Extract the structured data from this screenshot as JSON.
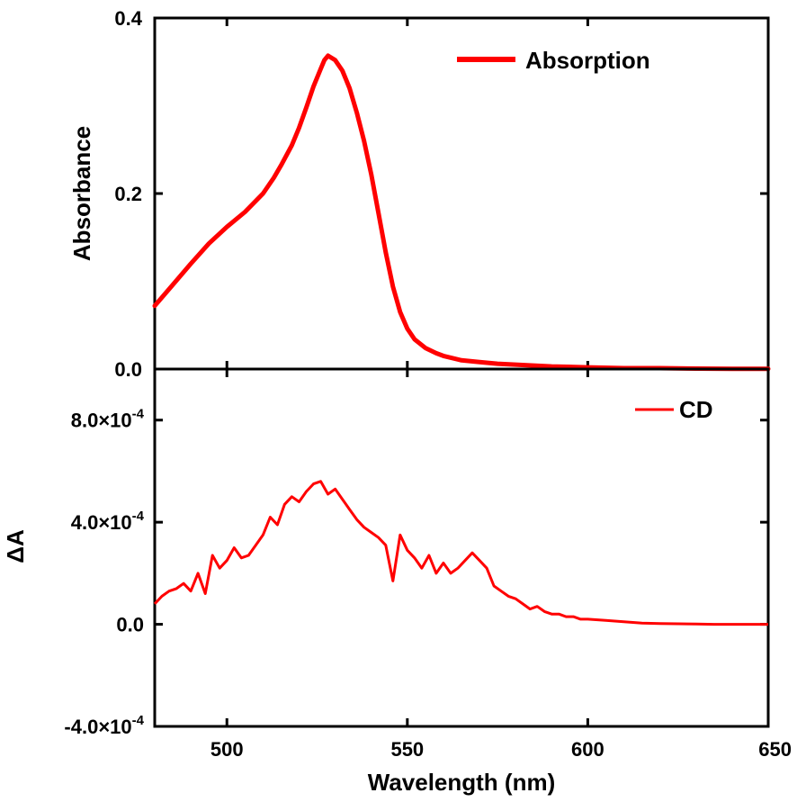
{
  "chart_data": [
    {
      "type": "line",
      "title": "",
      "xlabel": "",
      "ylabel": "Absorbance",
      "xlim": [
        480,
        650
      ],
      "ylim": [
        0,
        0.4
      ],
      "yticks": [
        0.0,
        0.2,
        0.4
      ],
      "ytick_labels": [
        "0.0",
        "0.2",
        "0.4"
      ],
      "legend_location": "top-right",
      "series": [
        {
          "name": "Absorption",
          "color": "#ff0000",
          "x": [
            480,
            485,
            490,
            495,
            500,
            505,
            510,
            513,
            515,
            518,
            520,
            522,
            524,
            526,
            527,
            528,
            530,
            532,
            534,
            536,
            538,
            540,
            542,
            544,
            546,
            548,
            550,
            552,
            555,
            558,
            560,
            565,
            570,
            575,
            580,
            590,
            600,
            610,
            620,
            630,
            640,
            650
          ],
          "y": [
            0.072,
            0.096,
            0.12,
            0.143,
            0.162,
            0.179,
            0.2,
            0.218,
            0.232,
            0.255,
            0.275,
            0.298,
            0.322,
            0.342,
            0.352,
            0.357,
            0.352,
            0.34,
            0.32,
            0.292,
            0.26,
            0.222,
            0.178,
            0.133,
            0.094,
            0.065,
            0.046,
            0.034,
            0.024,
            0.018,
            0.015,
            0.01,
            0.008,
            0.006,
            0.005,
            0.003,
            0.002,
            0.001,
            0.001,
            0.0005,
            0.0003,
            0.0002
          ]
        }
      ]
    },
    {
      "type": "line",
      "title": "",
      "xlabel": "Wavelength (nm)",
      "ylabel": "ΔA",
      "xlim": [
        480,
        650
      ],
      "ylim": [
        -0.0004,
        0.001
      ],
      "xticks": [
        500,
        550,
        600,
        650
      ],
      "xtick_labels": [
        "500",
        "550",
        "600",
        "650"
      ],
      "yticks": [
        -0.0004,
        0.0,
        0.0004,
        0.0008
      ],
      "ytick_labels": [
        {
          "mantissa": "-4.0×10",
          "exp": "-4"
        },
        {
          "mantissa": "0.0",
          "exp": ""
        },
        {
          "mantissa": "4.0×10",
          "exp": "-4"
        },
        {
          "mantissa": "8.0×10",
          "exp": "-4"
        }
      ],
      "legend_location": "top-right",
      "series": [
        {
          "name": "CD",
          "color": "#ff0000",
          "x": [
            480,
            482,
            484,
            486,
            488,
            490,
            492,
            494,
            496,
            498,
            500,
            502,
            504,
            506,
            508,
            510,
            512,
            514,
            516,
            518,
            520,
            522,
            524,
            526,
            528,
            530,
            532,
            534,
            536,
            538,
            540,
            542,
            544,
            546,
            548,
            550,
            552,
            554,
            556,
            558,
            560,
            562,
            564,
            566,
            568,
            570,
            572,
            574,
            576,
            578,
            580,
            582,
            584,
            586,
            588,
            590,
            592,
            594,
            596,
            598,
            600,
            605,
            610,
            615,
            620,
            625,
            630,
            635,
            640,
            645,
            650
          ],
          "y": [
            8e-05,
            0.00011,
            0.00013,
            0.00014,
            0.00016,
            0.00013,
            0.0002,
            0.00012,
            0.00027,
            0.00022,
            0.00025,
            0.0003,
            0.00026,
            0.00027,
            0.00031,
            0.00035,
            0.00042,
            0.00039,
            0.00047,
            0.0005,
            0.00048,
            0.00052,
            0.00055,
            0.00056,
            0.00051,
            0.00053,
            0.00049,
            0.00045,
            0.00041,
            0.00038,
            0.00036,
            0.00034,
            0.00031,
            0.00017,
            0.00035,
            0.00029,
            0.00026,
            0.00022,
            0.00027,
            0.0002,
            0.00024,
            0.0002,
            0.00022,
            0.00025,
            0.00028,
            0.00025,
            0.00022,
            0.00015,
            0.00013,
            0.00011,
            0.0001,
            8e-05,
            6e-05,
            7e-05,
            5e-05,
            4e-05,
            4e-05,
            3e-05,
            3e-05,
            2e-05,
            2e-05,
            1.5e-05,
            1e-05,
            5e-06,
            3e-06,
            2e-06,
            1e-06,
            0.0,
            0.0,
            0.0,
            0.0
          ]
        }
      ]
    }
  ]
}
